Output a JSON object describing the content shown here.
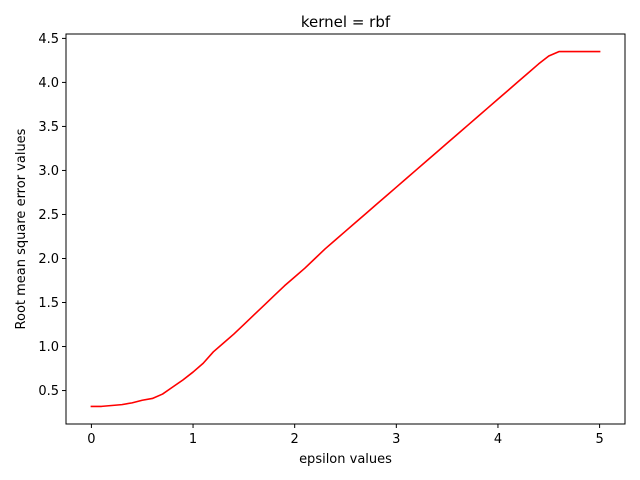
{
  "chart_data": {
    "type": "line",
    "title": "kernel = rbf",
    "xlabel": "epsilon values",
    "ylabel": "Root mean square error values",
    "xlim": [
      -0.25,
      5.25
    ],
    "ylim": [
      0.12,
      4.55
    ],
    "xticks": [
      0,
      1,
      2,
      3,
      4,
      5
    ],
    "xtick_labels": [
      "0",
      "1",
      "2",
      "3",
      "4",
      "5"
    ],
    "yticks": [
      0.5,
      1.0,
      1.5,
      2.0,
      2.5,
      3.0,
      3.5,
      4.0,
      4.5
    ],
    "ytick_labels": [
      "0.5",
      "1.0",
      "1.5",
      "2.0",
      "2.5",
      "3.0",
      "3.5",
      "4.0",
      "4.5"
    ],
    "grid": false,
    "legend": "none",
    "series": [
      {
        "color": "#ff0000",
        "x": [
          0.0,
          0.1,
          0.2,
          0.3,
          0.4,
          0.5,
          0.6,
          0.7,
          0.8,
          0.9,
          1.0,
          1.1,
          1.2,
          1.3,
          1.4,
          1.5,
          1.6,
          1.7,
          1.8,
          1.9,
          2.0,
          2.1,
          2.2,
          2.3,
          2.4,
          2.5,
          2.6,
          2.7,
          2.8,
          2.9,
          3.0,
          3.1,
          3.2,
          3.3,
          3.4,
          3.5,
          3.6,
          3.7,
          3.8,
          3.9,
          4.0,
          4.1,
          4.2,
          4.3,
          4.4,
          4.5,
          4.6,
          4.65,
          4.7,
          4.8,
          4.9,
          5.0
        ],
        "y": [
          0.32,
          0.32,
          0.33,
          0.34,
          0.36,
          0.39,
          0.41,
          0.46,
          0.54,
          0.62,
          0.71,
          0.81,
          0.94,
          1.04,
          1.14,
          1.25,
          1.36,
          1.47,
          1.58,
          1.69,
          1.79,
          1.89,
          2.0,
          2.11,
          2.21,
          2.31,
          2.41,
          2.51,
          2.61,
          2.71,
          2.81,
          2.91,
          3.01,
          3.11,
          3.21,
          3.31,
          3.41,
          3.51,
          3.61,
          3.71,
          3.81,
          3.91,
          4.01,
          4.11,
          4.21,
          4.3,
          4.35,
          4.35,
          4.35,
          4.35,
          4.35,
          4.35
        ]
      }
    ]
  }
}
